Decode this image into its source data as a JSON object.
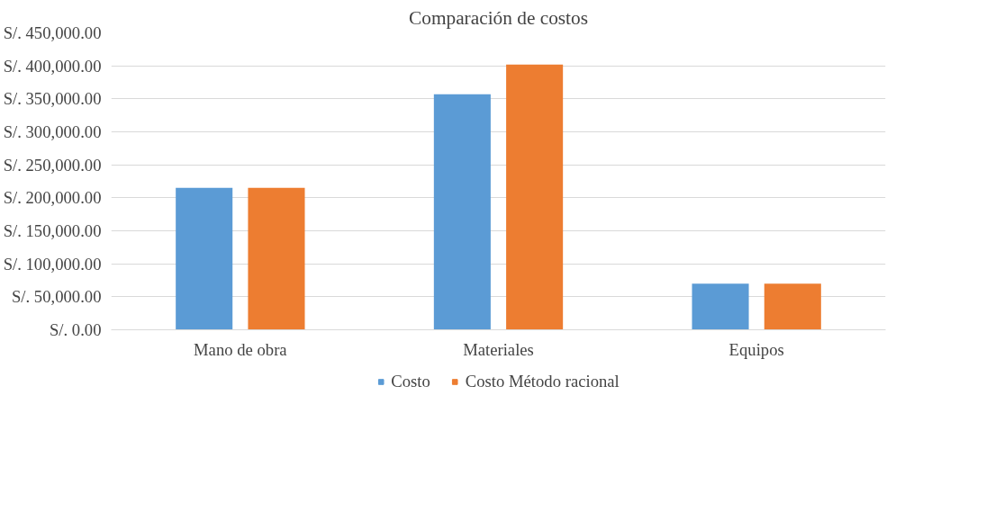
{
  "chart_data": {
    "type": "bar",
    "title": "Comparación de costos",
    "categories": [
      "Mano de obra",
      "Materiales",
      "Equipos"
    ],
    "series": [
      {
        "name": "Costo",
        "color": "#5b9bd5",
        "values": [
          215000,
          357000,
          70000
        ]
      },
      {
        "name": "Costo Método racional",
        "color": "#ed7d31",
        "values": [
          215000,
          402000,
          70000
        ]
      }
    ],
    "ylim": [
      0,
      450000
    ],
    "yticks": [
      {
        "value": 0,
        "label": "S/. 0.00"
      },
      {
        "value": 50000,
        "label": "S/. 50,000.00"
      },
      {
        "value": 100000,
        "label": "S/. 100,000.00"
      },
      {
        "value": 150000,
        "label": "S/. 150,000.00"
      },
      {
        "value": 200000,
        "label": "S/. 200,000.00"
      },
      {
        "value": 250000,
        "label": "S/. 250,000.00"
      },
      {
        "value": 300000,
        "label": "S/. 300,000.00"
      },
      {
        "value": 350000,
        "label": "S/. 350,000.00"
      },
      {
        "value": 400000,
        "label": "S/. 400,000.00"
      },
      {
        "value": 450000,
        "label": "S/. 450,000.00"
      }
    ],
    "grid": "y",
    "legend": "bottom"
  }
}
